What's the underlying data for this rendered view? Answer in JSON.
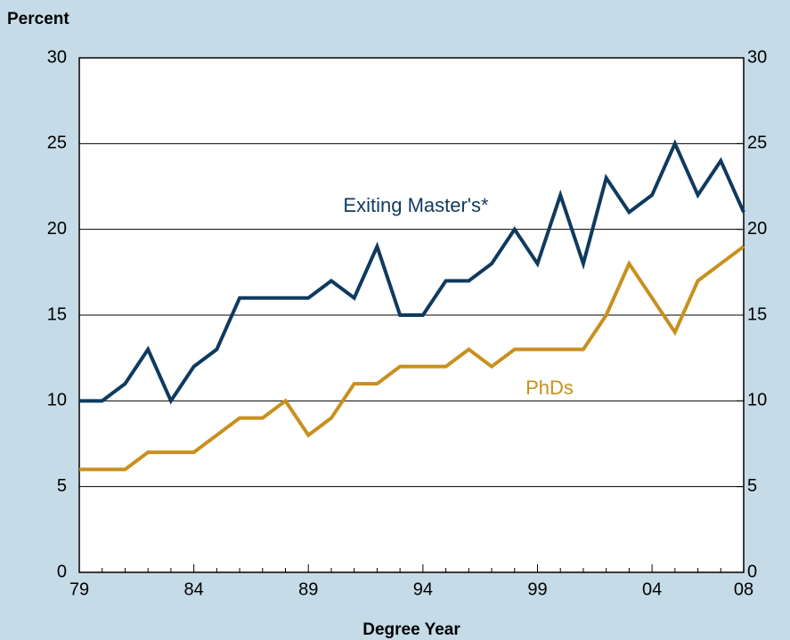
{
  "chart_data": {
    "type": "line",
    "y_label": "Percent",
    "x_label": "Degree Year",
    "categories": [
      "79",
      null,
      null,
      null,
      null,
      "84",
      null,
      null,
      null,
      null,
      "89",
      null,
      null,
      null,
      null,
      "94",
      null,
      null,
      null,
      null,
      "99",
      null,
      null,
      null,
      null,
      "04",
      null,
      null,
      null,
      "08"
    ],
    "series": [
      {
        "name": "Exiting Master's*",
        "color": "#0f3a5f",
        "values": [
          10,
          10,
          11,
          13,
          10,
          12,
          13,
          16,
          16,
          16,
          16,
          17,
          16,
          19,
          15,
          15,
          17,
          17,
          18,
          20,
          18,
          22,
          18,
          23,
          21,
          22,
          25,
          22,
          24,
          21
        ]
      },
      {
        "name": "PhDs",
        "color": "#c8901e",
        "values": [
          6,
          6,
          6,
          7,
          7,
          7,
          8,
          9,
          9,
          10,
          8,
          9,
          11,
          11,
          12,
          12,
          12,
          13,
          12,
          13,
          13,
          13,
          13,
          15,
          18,
          16,
          14,
          17,
          18,
          19
        ]
      }
    ],
    "ylim": [
      0,
      30
    ],
    "yticks": [
      0,
      5,
      10,
      15,
      20,
      25,
      30
    ],
    "y2lim": [
      0,
      30
    ],
    "y2ticks": [
      0,
      5,
      10,
      15,
      20,
      25,
      30
    ],
    "grid": true
  }
}
